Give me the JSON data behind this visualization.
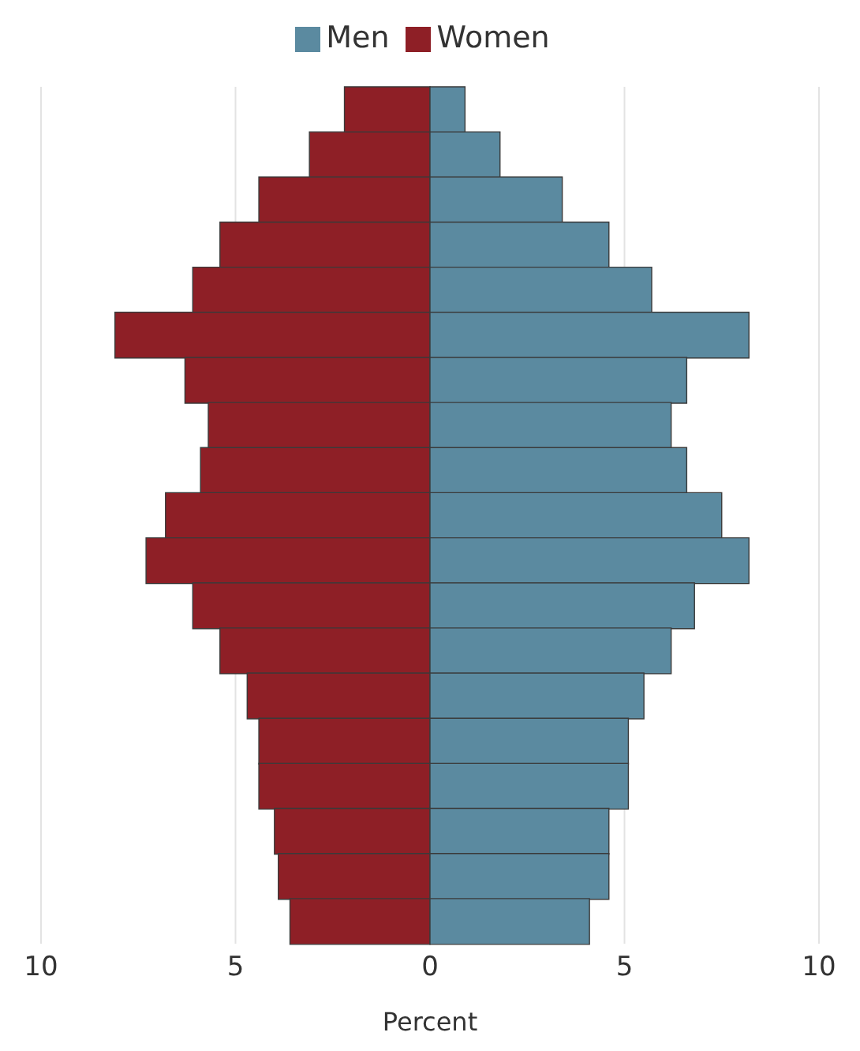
{
  "chart_data": {
    "type": "bar",
    "orientation": "horizontal",
    "stacked": true,
    "xlabel": "Percent",
    "categories": [
      null,
      null,
      null,
      null,
      null,
      null,
      null,
      null,
      null,
      null,
      null,
      null,
      null,
      null,
      null,
      null,
      null,
      null,
      null
    ],
    "series": [
      {
        "name": "Women",
        "color": "#8e1f26",
        "values": [
          -2.2,
          -3.1,
          -4.4,
          -5.4,
          -6.1,
          -8.1,
          -6.3,
          -5.7,
          -5.9,
          -6.8,
          -7.3,
          -6.1,
          -5.4,
          -4.7,
          -4.4,
          -4.4,
          -4.0,
          -3.9,
          -3.6
        ]
      },
      {
        "name": "Men",
        "color": "#5b8aa0",
        "values": [
          0.9,
          1.8,
          3.4,
          4.6,
          5.7,
          8.2,
          6.6,
          6.2,
          6.6,
          7.5,
          8.2,
          6.8,
          6.2,
          5.5,
          5.1,
          5.1,
          4.6,
          4.6,
          4.1
        ]
      }
    ],
    "xlim": [
      -10,
      10
    ],
    "xticks": [
      {
        "value": -10,
        "label": "10"
      },
      {
        "value": -5,
        "label": "5"
      },
      0,
      5,
      10
    ],
    "grid": "x",
    "legend": "top"
  }
}
